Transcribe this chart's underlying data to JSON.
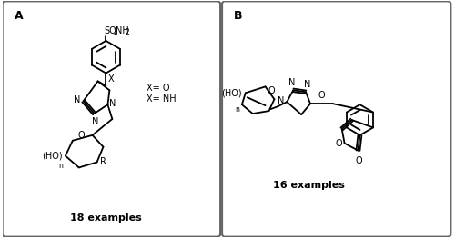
{
  "fig_width": 5.0,
  "fig_height": 2.62,
  "dpi": 100,
  "bg_color": "#ffffff",
  "panel_A_label": "A",
  "panel_B_label": "B",
  "panel_A_examples": "18 examples",
  "panel_B_examples": "16 examples",
  "legend1": "X= O",
  "legend2": "X= NH"
}
